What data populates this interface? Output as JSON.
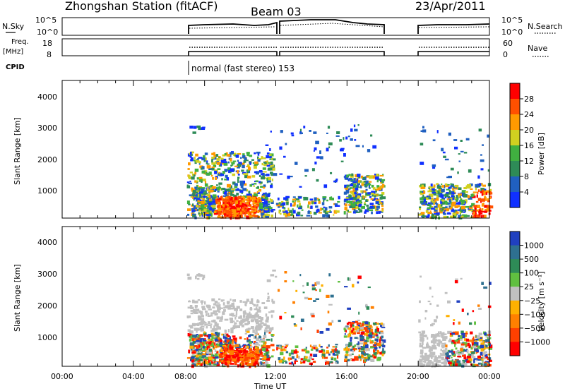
{
  "header": {
    "station": "Zhongshan Station (fitACF)",
    "beam": "Beam 03",
    "date": "23/Apr/2011"
  },
  "top_panels": {
    "nsky_label": "N.Sky",
    "nsky_ticks": [
      "10^5",
      "10^0"
    ],
    "nsearch_label": "N.Search",
    "nsearch_ticks": [
      "10^5",
      "10^0"
    ],
    "freq_label": "Freq.",
    "freq_unit": "[MHz]",
    "freq_ticks": [
      "18",
      "8"
    ],
    "nave_label": "Nave",
    "nave_ticks": [
      "60",
      "0"
    ],
    "cpid_label": "CPID",
    "cpid_text": "normal (fast stereo) 153"
  },
  "chart_data": [
    {
      "type": "heatmap",
      "name": "power",
      "ylabel": "Slant Range [km]",
      "yticks": [
        "1000",
        "2000",
        "3000",
        "4000"
      ],
      "ylim": [
        200,
        4500
      ],
      "x_hours": [
        0,
        24
      ],
      "cbar_label": "Power [dB]",
      "cbar_ticks": [
        "4",
        "8",
        "12",
        "16",
        "20",
        "24",
        "28"
      ],
      "cbar_colors": [
        "#1030ff",
        "#2060c0",
        "#2e8b57",
        "#40b040",
        "#d0d020",
        "#ff9a00",
        "#ff5000",
        "#ff0000"
      ],
      "data_segments_hours": [
        [
          7.0,
          18.0
        ],
        [
          20.0,
          24.0
        ]
      ]
    },
    {
      "type": "heatmap",
      "name": "velocity",
      "ylabel": "Slant Range [km]",
      "yticks": [
        "1000",
        "2000",
        "3000",
        "4000"
      ],
      "ylim": [
        200,
        4500
      ],
      "x_hours": [
        0,
        24
      ],
      "xticks": [
        "00:00",
        "04:00",
        "08:00",
        "12:00",
        "16:00",
        "20:00",
        "00:00"
      ],
      "xlabel": "Time UT",
      "cbar_label": "Velocity [m s⁻¹]",
      "cbar_ticks": [
        "1000",
        "500",
        "100",
        "25",
        "−25",
        "−100",
        "−500",
        "−1000"
      ],
      "cbar_colors": [
        "#2040c0",
        "#2e7090",
        "#2e8b57",
        "#60c040",
        "#c0c0c0",
        "#ffb000",
        "#ff8000",
        "#ff4000",
        "#ff0000"
      ],
      "data_segments_hours": [
        [
          7.0,
          18.0
        ],
        [
          20.0,
          24.0
        ]
      ]
    }
  ]
}
